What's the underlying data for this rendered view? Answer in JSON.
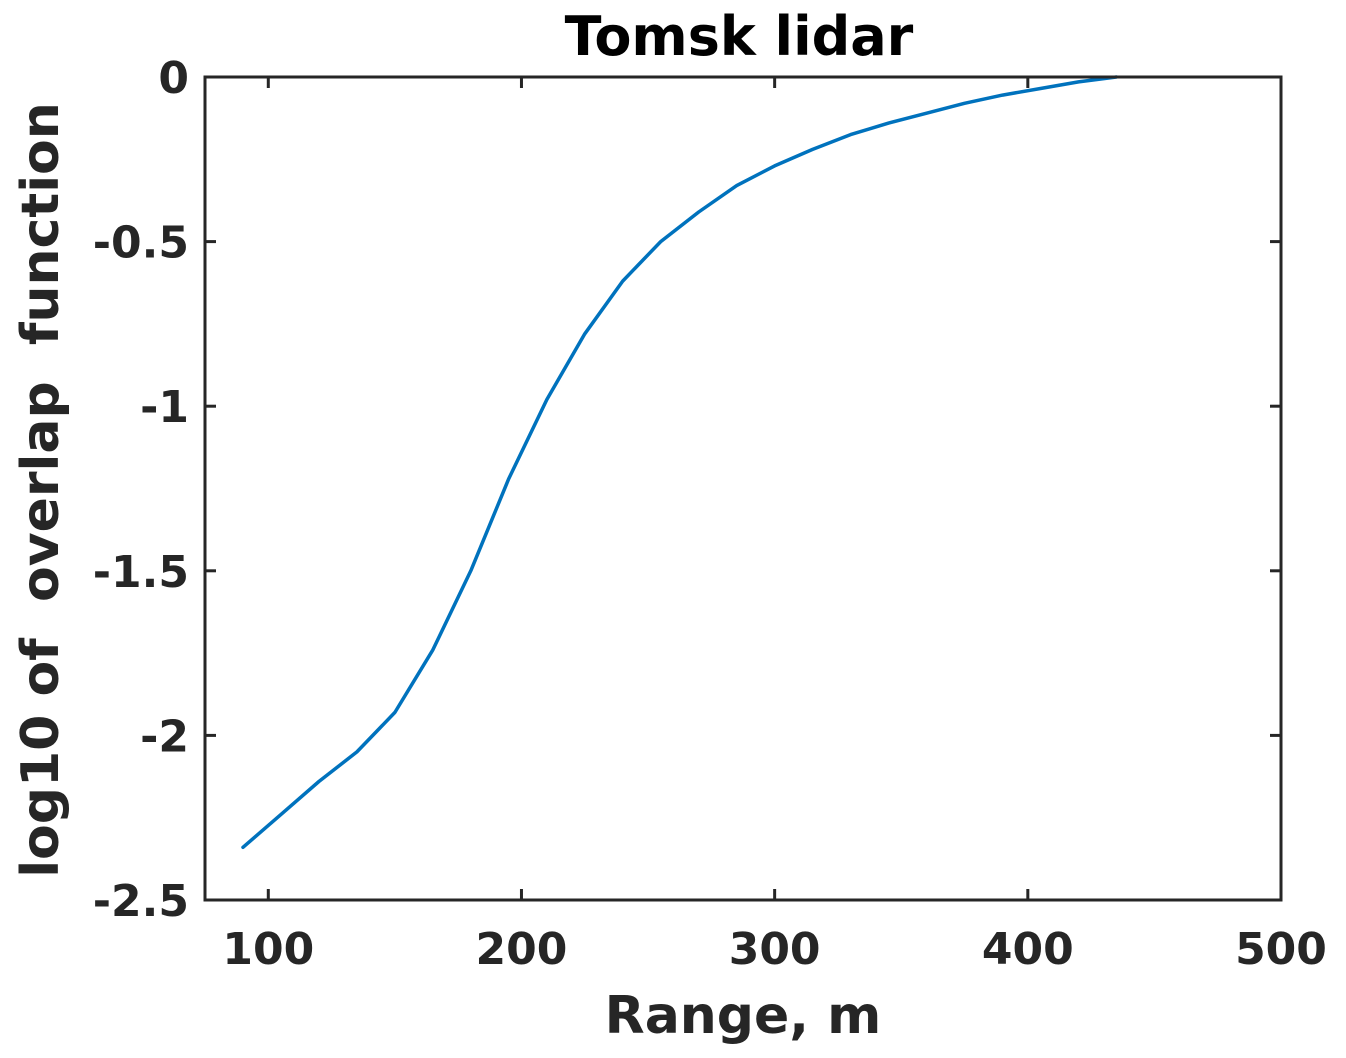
{
  "chart_data": {
    "type": "line",
    "title": "Tomsk lidar",
    "xlabel": "Range, m",
    "ylabel": "log10 of  overlap  function",
    "xlim": [
      75,
      500
    ],
    "ylim": [
      -2.5,
      0
    ],
    "xticks": [
      100,
      200,
      300,
      400,
      500
    ],
    "xtick_labels": [
      "100",
      "200",
      "300",
      "400",
      "500"
    ],
    "yticks": [
      0,
      -0.5,
      -1,
      -1.5,
      -2,
      -2.5
    ],
    "ytick_labels": [
      "0",
      "-0.5",
      "-1",
      "-1.5",
      "-2",
      "-2.5"
    ],
    "grid": false,
    "series": [
      {
        "color": "#0072BD",
        "x": [
          90,
          105,
          120,
          135,
          150,
          165,
          180,
          195,
          210,
          225,
          240,
          255,
          270,
          285,
          300,
          315,
          330,
          345,
          360,
          375,
          390,
          405,
          420,
          435
        ],
        "y": [
          -2.34,
          -2.24,
          -2.14,
          -2.05,
          -1.93,
          -1.74,
          -1.5,
          -1.22,
          -0.98,
          -0.78,
          -0.62,
          -0.5,
          -0.41,
          -0.33,
          -0.27,
          -0.22,
          -0.175,
          -0.14,
          -0.11,
          -0.08,
          -0.055,
          -0.035,
          -0.015,
          0.0
        ]
      }
    ]
  }
}
